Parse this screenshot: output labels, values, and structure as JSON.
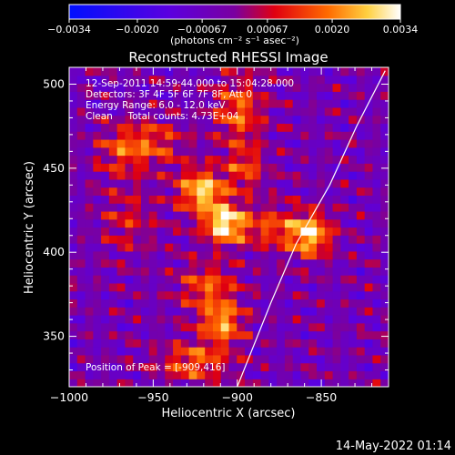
{
  "chart_data": {
    "type": "heatmap",
    "title": "Reconstructed RHESSI Image",
    "xlabel": "Heliocentric X (arcsec)",
    "ylabel": "Heliocentric Y (arcsec)",
    "xlim": [
      -1000,
      -810
    ],
    "ylim": [
      320,
      510
    ],
    "xticks": [
      -1000,
      -950,
      -900,
      -850
    ],
    "xtick_labels": [
      "−1000",
      "−950",
      "−900",
      "−850"
    ],
    "yticks": [
      350,
      400,
      450,
      500
    ],
    "ytick_labels": [
      "350",
      "400",
      "450",
      "500"
    ],
    "colorbar": {
      "min": -0.0034,
      "max": 0.0034,
      "ticks": [
        -0.0034,
        -0.002,
        -0.00067,
        0.00067,
        0.002,
        0.0034
      ],
      "tick_labels": [
        "−0.0034",
        "−0.0020",
        "−0.00067",
        "0.00067",
        "0.0020",
        "0.0034"
      ],
      "unit_label": "(photons cm⁻² s⁻¹ asec⁻²)",
      "colors": [
        "#0000ff",
        "#6a00ff",
        "#ff0000",
        "#ffaa00",
        "#ffffff"
      ]
    },
    "annotations": [
      "12-Sep-2011 14:59:44.000 to 15:04:28.000",
      "Detectors: 3F 4F 5F 6F 7F 8F, Att 0",
      "Energy Range: 6.0 - 12.0 keV",
      "Clean     Total counts: 4.73E+04"
    ],
    "peak_label": "Position of Peak = [-909,416]",
    "peak": [
      -909,
      416
    ],
    "sources": [
      {
        "x": -907,
        "y": 417,
        "amp": 1.0,
        "sx": 9,
        "sy": 8
      },
      {
        "x": -921,
        "y": 437,
        "amp": 0.85,
        "sx": 10,
        "sy": 9
      },
      {
        "x": -857,
        "y": 411,
        "amp": 0.9,
        "sx": 9,
        "sy": 9
      },
      {
        "x": -909,
        "y": 358,
        "amp": 0.7,
        "sx": 9,
        "sy": 9
      },
      {
        "x": -899,
        "y": 485,
        "amp": 0.55,
        "sx": 10,
        "sy": 14
      },
      {
        "x": -951,
        "y": 465,
        "amp": 0.45,
        "sx": 14,
        "sy": 10
      },
      {
        "x": -918,
        "y": 380,
        "amp": 0.5,
        "sx": 12,
        "sy": 10
      },
      {
        "x": -880,
        "y": 415,
        "amp": 0.45,
        "sx": 10,
        "sy": 9
      },
      {
        "x": -926,
        "y": 335,
        "amp": 0.55,
        "sx": 15,
        "sy": 8
      },
      {
        "x": -965,
        "y": 420,
        "amp": 0.3,
        "sx": 12,
        "sy": 14
      },
      {
        "x": -970,
        "y": 460,
        "amp": 0.35,
        "sx": 10,
        "sy": 10
      },
      {
        "x": -895,
        "y": 450,
        "amp": 0.45,
        "sx": 8,
        "sy": 10
      }
    ],
    "limb_curve": [
      [
        -900,
        320
      ],
      [
        -880,
        370
      ],
      [
        -865,
        405
      ],
      [
        -845,
        440
      ],
      [
        -829,
        475
      ],
      [
        -812,
        508
      ]
    ],
    "limb_color": "#ffffff",
    "background_color": "#000000"
  },
  "footer": {
    "date": "14-May-2022 01:14"
  }
}
